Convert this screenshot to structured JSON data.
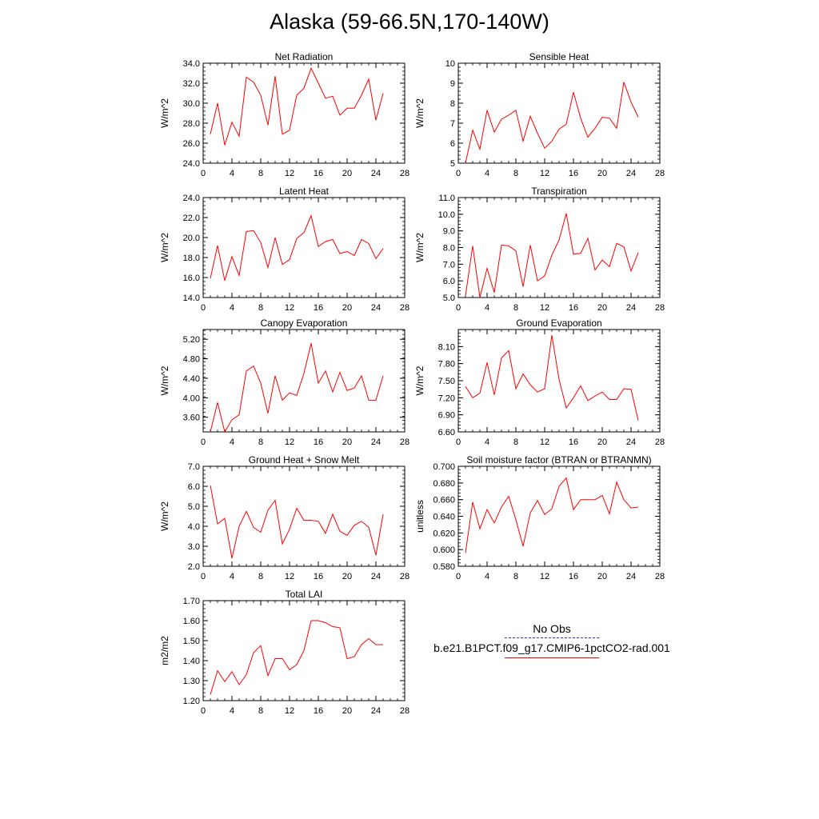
{
  "title": "Alaska (59-66.5N,170-140W)",
  "legend": {
    "obs_label": "No Obs",
    "model_label": "b.e21.B1PCT.f09_g17.CMIP6-1pctCO2-rad.001",
    "obs_color": "#3333cc",
    "model_color": "#ff0000"
  },
  "chart_data": [
    {
      "type": "line",
      "title": "Net Radiation",
      "ylabel": "W/m^2",
      "xlim": [
        0,
        28
      ],
      "xticks": [
        "0",
        "4",
        "8",
        "12",
        "16",
        "20",
        "24",
        "28"
      ],
      "ylim": [
        24,
        34
      ],
      "yticks": [
        "24.0",
        "26.0",
        "28.0",
        "30.0",
        "32.0",
        "34.0"
      ],
      "x": [
        1,
        2,
        3,
        4,
        5,
        6,
        7,
        8,
        9,
        10,
        11,
        12,
        13,
        14,
        15,
        16,
        17,
        18,
        19,
        20,
        21,
        22,
        23,
        24,
        25
      ],
      "series": [
        {
          "color": "#ff0000",
          "values": [
            26.9,
            30.0,
            25.8,
            28.1,
            26.7,
            32.6,
            32.1,
            30.8,
            27.8,
            32.7,
            26.9,
            27.3,
            30.8,
            31.5,
            33.5,
            32.0,
            30.5,
            30.7,
            28.8,
            29.5,
            29.5,
            30.8,
            32.4,
            28.3,
            31.0
          ]
        }
      ]
    },
    {
      "type": "line",
      "title": "Sensible Heat",
      "ylabel": "W/m^2",
      "xlim": [
        0,
        28
      ],
      "xticks": [
        "0",
        "4",
        "8",
        "12",
        "16",
        "20",
        "24",
        "28"
      ],
      "ylim": [
        5,
        10
      ],
      "yticks": [
        "5",
        "6",
        "7",
        "8",
        "9",
        "10"
      ],
      "x": [
        1,
        2,
        3,
        4,
        5,
        6,
        7,
        8,
        9,
        10,
        11,
        12,
        13,
        14,
        15,
        16,
        17,
        18,
        19,
        20,
        21,
        22,
        23,
        24,
        25
      ],
      "series": [
        {
          "color": "#ff0000",
          "values": [
            5.0,
            6.65,
            5.7,
            7.65,
            6.55,
            7.2,
            7.4,
            7.65,
            6.1,
            7.35,
            6.5,
            5.75,
            6.1,
            6.7,
            6.95,
            8.55,
            7.25,
            6.3,
            6.75,
            7.3,
            7.25,
            6.75,
            9.05,
            8.05,
            7.3
          ]
        }
      ]
    },
    {
      "type": "line",
      "title": "Latent Heat",
      "ylabel": "W/m^2",
      "xlim": [
        0,
        28
      ],
      "xticks": [
        "0",
        "4",
        "8",
        "12",
        "16",
        "20",
        "24",
        "28"
      ],
      "ylim": [
        14,
        24
      ],
      "yticks": [
        "14.0",
        "16.0",
        "18.0",
        "20.0",
        "22.0",
        "24.0"
      ],
      "x": [
        1,
        2,
        3,
        4,
        5,
        6,
        7,
        8,
        9,
        10,
        11,
        12,
        13,
        14,
        15,
        16,
        17,
        18,
        19,
        20,
        21,
        22,
        23,
        24,
        25
      ],
      "series": [
        {
          "color": "#ff0000",
          "values": [
            15.9,
            19.2,
            15.7,
            18.1,
            16.2,
            20.6,
            20.7,
            19.5,
            17.0,
            20.0,
            17.3,
            17.8,
            19.9,
            20.5,
            22.2,
            19.1,
            19.6,
            19.8,
            18.4,
            18.6,
            18.2,
            19.8,
            19.4,
            17.9,
            18.9
          ]
        }
      ]
    },
    {
      "type": "line",
      "title": "Transpiration",
      "ylabel": "W/m^2",
      "xlim": [
        0,
        28
      ],
      "xticks": [
        "0",
        "4",
        "8",
        "12",
        "16",
        "20",
        "24",
        "28"
      ],
      "ylim": [
        5,
        11
      ],
      "yticks": [
        "5.0",
        "6.0",
        "7.0",
        "8.0",
        "9.0",
        "10.0",
        "11.0"
      ],
      "x": [
        1,
        2,
        3,
        4,
        5,
        6,
        7,
        8,
        9,
        10,
        11,
        12,
        13,
        14,
        15,
        16,
        17,
        18,
        19,
        20,
        21,
        22,
        23,
        24,
        25
      ],
      "series": [
        {
          "color": "#ff0000",
          "values": [
            5.1,
            8.1,
            5.0,
            6.75,
            5.3,
            8.15,
            8.1,
            7.8,
            5.65,
            8.15,
            6.0,
            6.3,
            7.55,
            8.45,
            10.05,
            7.6,
            7.65,
            8.55,
            6.65,
            7.25,
            6.85,
            8.25,
            8.05,
            6.6,
            7.7
          ]
        }
      ]
    },
    {
      "type": "line",
      "title": "Canopy Evaporation",
      "ylabel": "W/m^2",
      "xlim": [
        0,
        28
      ],
      "xticks": [
        "0",
        "4",
        "8",
        "12",
        "16",
        "20",
        "24",
        "28"
      ],
      "ylim": [
        3.3,
        5.4
      ],
      "yticks": [
        "3.60",
        "4.00",
        "4.40",
        "4.80",
        "5.20"
      ],
      "ytick_values": [
        3.6,
        4.0,
        4.4,
        4.8,
        5.2
      ],
      "x": [
        1,
        2,
        3,
        4,
        5,
        6,
        7,
        8,
        9,
        10,
        11,
        12,
        13,
        14,
        15,
        16,
        17,
        18,
        19,
        20,
        21,
        22,
        23,
        24,
        25
      ],
      "series": [
        {
          "color": "#ff0000",
          "values": [
            3.3,
            3.9,
            3.3,
            3.55,
            3.65,
            4.55,
            4.65,
            4.3,
            3.68,
            4.45,
            3.95,
            4.1,
            4.05,
            4.5,
            5.12,
            4.3,
            4.55,
            4.12,
            4.52,
            4.15,
            4.2,
            4.45,
            3.95,
            3.95,
            4.45
          ]
        }
      ]
    },
    {
      "type": "line",
      "title": "Ground Evaporation",
      "ylabel": "W/m^2",
      "xlim": [
        0,
        28
      ],
      "xticks": [
        "0",
        "4",
        "8",
        "12",
        "16",
        "20",
        "24",
        "28"
      ],
      "ylim": [
        6.6,
        8.4
      ],
      "yticks": [
        "6.60",
        "6.90",
        "7.20",
        "7.50",
        "7.80",
        "8.10"
      ],
      "ytick_values": [
        6.6,
        6.9,
        7.2,
        7.5,
        7.8,
        8.1
      ],
      "x": [
        1,
        2,
        3,
        4,
        5,
        6,
        7,
        8,
        9,
        10,
        11,
        12,
        13,
        14,
        15,
        16,
        17,
        18,
        19,
        20,
        21,
        22,
        23,
        24,
        25
      ],
      "series": [
        {
          "color": "#ff0000",
          "values": [
            7.4,
            7.2,
            7.28,
            7.82,
            7.25,
            7.9,
            8.03,
            7.36,
            7.62,
            7.43,
            7.3,
            7.36,
            8.3,
            7.52,
            7.02,
            7.2,
            7.41,
            7.15,
            7.23,
            7.3,
            7.17,
            7.17,
            7.36,
            7.35,
            6.8
          ]
        }
      ]
    },
    {
      "type": "line",
      "title": "Ground Heat + Snow Melt",
      "ylabel": "W/m^2",
      "xlim": [
        0,
        28
      ],
      "xticks": [
        "0",
        "4",
        "8",
        "12",
        "16",
        "20",
        "24",
        "28"
      ],
      "ylim": [
        2,
        7
      ],
      "yticks": [
        "2.0",
        "3.0",
        "4.0",
        "5.0",
        "6.0",
        "7.0"
      ],
      "x": [
        1,
        2,
        3,
        4,
        5,
        6,
        7,
        8,
        9,
        10,
        11,
        12,
        13,
        14,
        15,
        16,
        17,
        18,
        19,
        20,
        21,
        22,
        23,
        24,
        25
      ],
      "series": [
        {
          "color": "#ff0000",
          "values": [
            6.05,
            4.12,
            4.4,
            2.4,
            4.0,
            4.75,
            3.95,
            3.7,
            4.8,
            5.3,
            3.12,
            3.85,
            4.9,
            4.3,
            4.3,
            4.25,
            3.65,
            4.6,
            3.75,
            3.55,
            4.05,
            4.25,
            3.95,
            2.55,
            4.6
          ]
        }
      ]
    },
    {
      "type": "line",
      "title": "Soil moisture factor (BTRAN or BTRANMN)",
      "ylabel": "unitless",
      "xlim": [
        0,
        28
      ],
      "xticks": [
        "0",
        "4",
        "8",
        "12",
        "16",
        "20",
        "24",
        "28"
      ],
      "ylim": [
        0.58,
        0.7
      ],
      "yticks": [
        "0.580",
        "0.600",
        "0.620",
        "0.640",
        "0.660",
        "0.680",
        "0.700"
      ],
      "x": [
        1,
        2,
        3,
        4,
        5,
        6,
        7,
        8,
        9,
        10,
        11,
        12,
        13,
        14,
        15,
        16,
        17,
        18,
        19,
        20,
        21,
        22,
        23,
        24,
        25
      ],
      "series": [
        {
          "color": "#ff0000",
          "values": [
            0.596,
            0.657,
            0.625,
            0.648,
            0.632,
            0.651,
            0.664,
            0.636,
            0.604,
            0.644,
            0.659,
            0.642,
            0.649,
            0.676,
            0.686,
            0.648,
            0.66,
            0.66,
            0.66,
            0.665,
            0.643,
            0.681,
            0.66,
            0.65,
            0.651
          ]
        }
      ]
    },
    {
      "type": "line",
      "title": "Total LAI",
      "ylabel": "m2/m2",
      "xlim": [
        0,
        28
      ],
      "xticks": [
        "0",
        "4",
        "8",
        "12",
        "16",
        "20",
        "24",
        "28"
      ],
      "ylim": [
        1.2,
        1.7
      ],
      "yticks": [
        "1.20",
        "1.30",
        "1.40",
        "1.50",
        "1.60",
        "1.70"
      ],
      "x": [
        1,
        2,
        3,
        4,
        5,
        6,
        7,
        8,
        9,
        10,
        11,
        12,
        13,
        14,
        15,
        16,
        17,
        18,
        19,
        20,
        21,
        22,
        23,
        24,
        25
      ],
      "series": [
        {
          "color": "#ff0000",
          "values": [
            1.23,
            1.35,
            1.295,
            1.345,
            1.28,
            1.33,
            1.44,
            1.475,
            1.325,
            1.41,
            1.41,
            1.355,
            1.38,
            1.45,
            1.6,
            1.6,
            1.59,
            1.57,
            1.565,
            1.41,
            1.42,
            1.48,
            1.51,
            1.48,
            1.48
          ]
        }
      ]
    }
  ]
}
